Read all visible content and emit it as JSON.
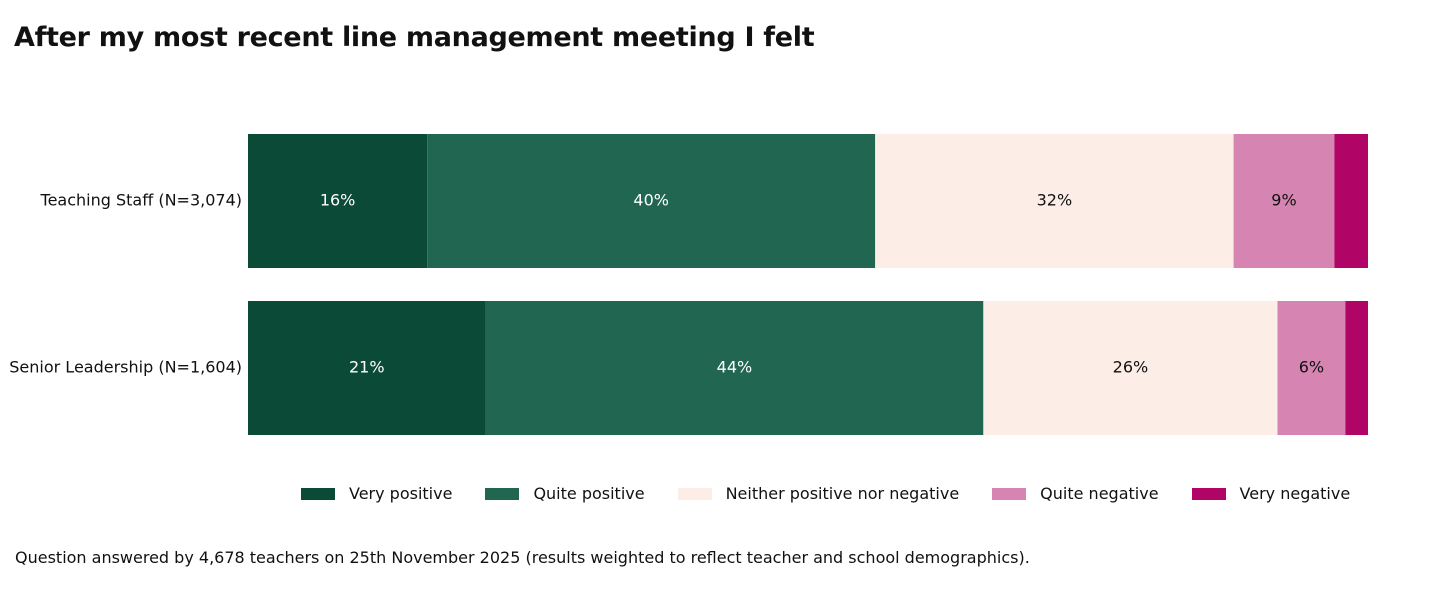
{
  "title": "After my most recent line management meeting I felt",
  "footnote": "Question answered by 4,678 teachers on 25th November 2025 (results weighted to reflect teacher and school demographics).",
  "chart_data": {
    "type": "bar",
    "orientation": "horizontal",
    "stacked": true,
    "normalized": true,
    "title": "After my most recent line management meeting I felt",
    "categories": [
      "Teaching Staff (N=3,074)",
      "Senior Leadership (N=1,604)"
    ],
    "series": [
      {
        "name": "Very positive",
        "color": "#0b4a37",
        "text_color": "#ffffff",
        "values": [
          16,
          21
        ],
        "labels": [
          "16%",
          "21%"
        ]
      },
      {
        "name": "Quite positive",
        "color": "#206650",
        "text_color": "#ffffff",
        "values": [
          40,
          44
        ],
        "labels": [
          "40%",
          "44%"
        ]
      },
      {
        "name": "Neither positive nor negative",
        "color": "#fcede6",
        "text_color": "#111111",
        "values": [
          32,
          26
        ],
        "labels": [
          "32%",
          "26%"
        ]
      },
      {
        "name": "Quite negative",
        "color": "#d685b2",
        "text_color": "#111111",
        "values": [
          9,
          6
        ],
        "labels": [
          "9%",
          "6%"
        ]
      },
      {
        "name": "Very negative",
        "color": "#b00566",
        "text_color": "#ffffff",
        "values": [
          3,
          2
        ],
        "labels": [
          "",
          ""
        ]
      }
    ],
    "xlim": [
      0,
      100
    ],
    "legend_position": "bottom"
  }
}
